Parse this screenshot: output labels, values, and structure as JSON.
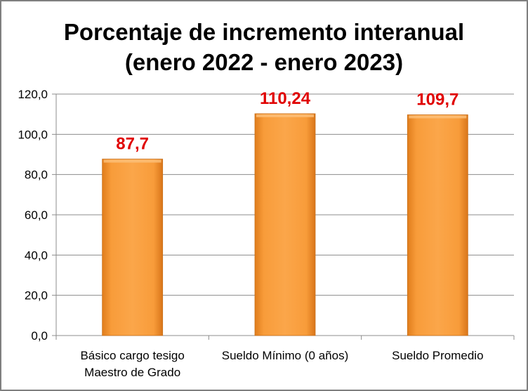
{
  "chart_data": {
    "type": "bar",
    "title": [
      "Porcentaje de incremento interanual",
      "(enero 2022 - enero 2023)"
    ],
    "categories": [
      [
        "Básico cargo tesigo",
        "Maestro de Grado"
      ],
      [
        "Sueldo Mínimo (0 años)"
      ],
      [
        "Sueldo Promedio"
      ]
    ],
    "values": [
      87.7,
      110.24,
      109.7
    ],
    "data_labels": [
      "87,7",
      "110,24",
      "109,7"
    ],
    "xlabel": "",
    "ylabel": "",
    "ylim": [
      0,
      120
    ],
    "yticks": [
      0,
      20,
      40,
      60,
      80,
      100,
      120
    ],
    "ytick_labels": [
      "0,0",
      "20,0",
      "40,0",
      "60,0",
      "80,0",
      "100,0",
      "120,0"
    ],
    "grid": true,
    "legend": "none",
    "colors": {
      "bar": "#f79a33",
      "bar_dark": "#e07d1c",
      "label": "#e00000",
      "grid": "#8c8c8c"
    }
  }
}
